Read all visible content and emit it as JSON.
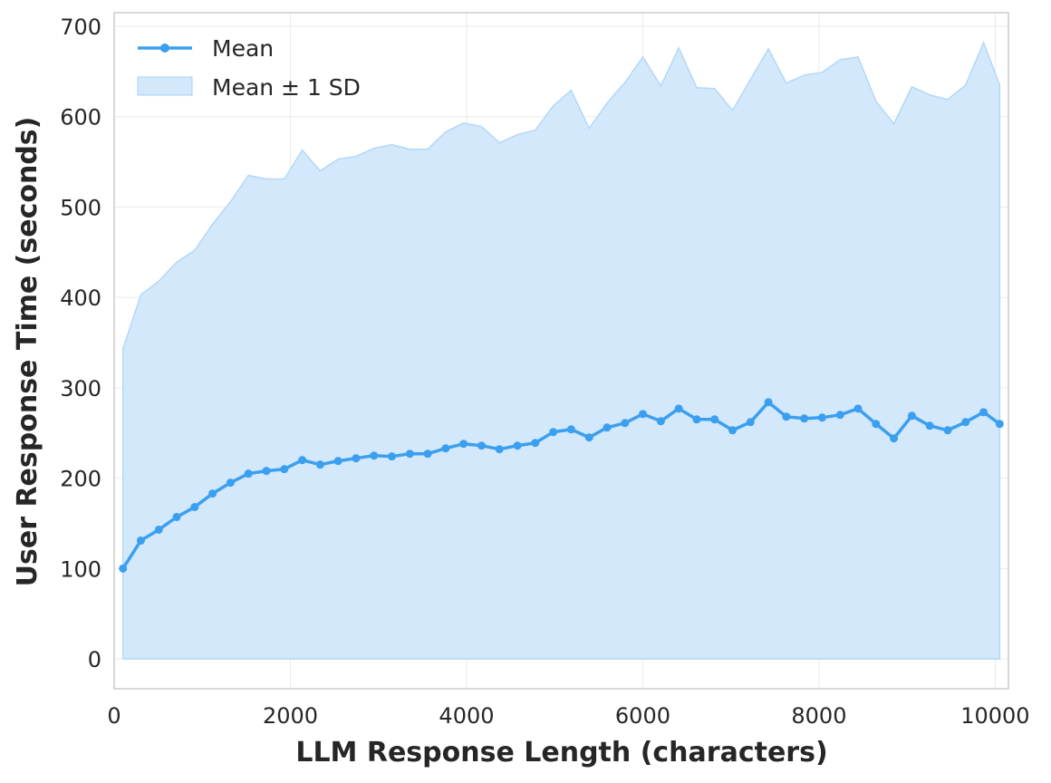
{
  "chart_data": {
    "type": "line",
    "title": "",
    "xlabel": "LLM Response Length (characters)",
    "ylabel": "User Response Time (seconds)",
    "xlim": [
      0,
      10150
    ],
    "ylim": [
      -33,
      715
    ],
    "xticks": [
      0,
      2000,
      4000,
      6000,
      8000,
      10000
    ],
    "yticks": [
      0,
      100,
      200,
      300,
      400,
      500,
      600,
      700
    ],
    "grid": true,
    "legend_position": "top-left",
    "colors": {
      "mean": "#3b9ff0",
      "band": "#d3e8fb",
      "band_edge": "#a9d2f5"
    },
    "legend": [
      "Mean",
      "Mean ± 1 SD"
    ],
    "x": [
      100,
      303,
      507,
      710,
      914,
      1117,
      1321,
      1524,
      1728,
      1931,
      2135,
      2338,
      2542,
      2745,
      2949,
      3152,
      3356,
      3559,
      3763,
      3966,
      4170,
      4373,
      4577,
      4780,
      4984,
      5187,
      5391,
      5594,
      5798,
      6001,
      6205,
      6408,
      6612,
      6815,
      7019,
      7222,
      7426,
      7629,
      7833,
      8036,
      8240,
      8443,
      8647,
      8850,
      9054,
      9257,
      9461,
      9664,
      9868,
      10051
    ],
    "series": [
      {
        "name": "Mean",
        "values": [
          100,
          131,
          143,
          157,
          168,
          183,
          195,
          205,
          208,
          210,
          220,
          215,
          219,
          222,
          225,
          224,
          227,
          227,
          233,
          238,
          236,
          232,
          236,
          239,
          251,
          254,
          245,
          256,
          261,
          271,
          263,
          277,
          265,
          265,
          253,
          262,
          284,
          268,
          266,
          267,
          270,
          277,
          260,
          244,
          269,
          258,
          253,
          262,
          273,
          260
        ]
      },
      {
        "name": "Mean ± 1 SD",
        "upper": [
          343,
          403,
          418,
          439,
          452,
          481,
          506,
          535,
          531,
          531,
          563,
          540,
          553,
          556,
          565,
          569,
          564,
          564,
          583,
          593,
          589,
          571,
          580,
          585,
          612,
          629,
          587,
          615,
          638,
          666,
          634,
          676,
          632,
          631,
          607,
          641,
          675,
          637,
          646,
          649,
          663,
          666,
          617,
          592,
          633,
          624,
          619,
          635,
          682,
          635
        ],
        "lower_clipped_at": 0
      }
    ]
  }
}
